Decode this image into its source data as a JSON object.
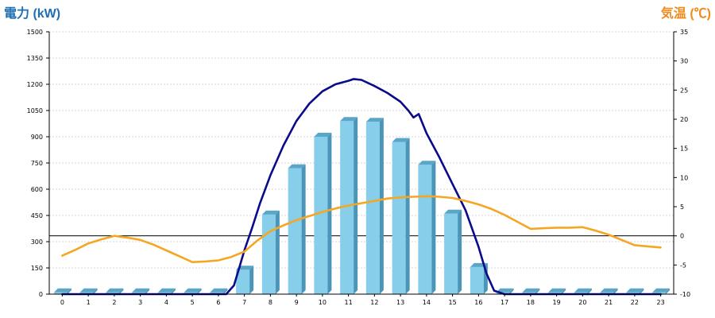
{
  "chart_data": {
    "type": "bar",
    "title": "",
    "ylabel_left": "電力 (kW)",
    "ylabel_right": "気温 (℃)",
    "xlabel": "",
    "categories": [
      "0",
      "1",
      "2",
      "3",
      "4",
      "5",
      "6",
      "7",
      "8",
      "9",
      "10",
      "11",
      "12",
      "13",
      "14",
      "15",
      "16",
      "17",
      "18",
      "19",
      "20",
      "21",
      "22",
      "23"
    ],
    "y_left": {
      "min": 0,
      "max": 1500,
      "ticks": [
        "0",
        "150",
        "300",
        "450",
        "600",
        "750",
        "900",
        "1050",
        "1200",
        "1350",
        "1500"
      ]
    },
    "y_right": {
      "min": -10,
      "max": 35,
      "ticks": [
        "-10",
        "-5",
        "0",
        "5",
        "10",
        "15",
        "20",
        "25",
        "30",
        "35"
      ]
    },
    "grid": true,
    "series": [
      {
        "kind": "bar",
        "axis": "left",
        "color": "#87ceeb",
        "values": [
          10,
          10,
          10,
          10,
          10,
          10,
          10,
          140,
          455,
          720,
          900,
          990,
          985,
          870,
          740,
          460,
          155,
          10,
          10,
          10,
          10,
          10,
          10,
          10
        ]
      },
      {
        "kind": "line",
        "axis": "left",
        "color": "#0a0a8a",
        "x": [
          0,
          0.5,
          1,
          1.5,
          2,
          2.5,
          3,
          3.5,
          4,
          4.5,
          5,
          5.5,
          6,
          6.3,
          6.6,
          6.8,
          7,
          7.3,
          7.6,
          8,
          8.5,
          9,
          9.5,
          10,
          10.5,
          11,
          11.2,
          11.5,
          12,
          12.5,
          13,
          13.3,
          13.5,
          13.7,
          14,
          14.5,
          15,
          15.5,
          16,
          16.3,
          16.6,
          17,
          17.5,
          18,
          19,
          20,
          21,
          22,
          23
        ],
        "values": [
          0,
          0,
          0,
          0,
          0,
          0,
          0,
          0,
          0,
          0,
          0,
          0,
          0,
          0,
          50,
          150,
          250,
          380,
          520,
          680,
          850,
          990,
          1090,
          1160,
          1200,
          1220,
          1230,
          1225,
          1190,
          1150,
          1100,
          1050,
          1010,
          1030,
          920,
          780,
          630,
          480,
          270,
          120,
          20,
          0,
          0,
          0,
          0,
          0,
          0,
          0,
          0
        ]
      },
      {
        "kind": "line",
        "axis": "right",
        "color": "#f5a623",
        "x": [
          0,
          0.5,
          1,
          1.5,
          2,
          2.5,
          3,
          3.5,
          4,
          4.5,
          5,
          5.5,
          6,
          6.5,
          7,
          7.5,
          8,
          8.5,
          9,
          9.5,
          10,
          10.5,
          11,
          11.5,
          12,
          12.5,
          13,
          13.5,
          14,
          14.5,
          15,
          15.5,
          16,
          16.5,
          17,
          17.5,
          18,
          18.5,
          19,
          19.5,
          20,
          20.5,
          21,
          21.5,
          22,
          22.5,
          23
        ],
        "values": [
          -3.4,
          -2.4,
          -1.3,
          -0.6,
          0,
          -0.3,
          -0.7,
          -1.5,
          -2.5,
          -3.5,
          -4.5,
          -4.4,
          -4.2,
          -3.6,
          -2.7,
          -0.8,
          0.8,
          1.8,
          2.7,
          3.4,
          4.1,
          4.7,
          5.2,
          5.6,
          6.0,
          6.4,
          6.6,
          6.7,
          6.8,
          6.7,
          6.5,
          6.0,
          5.4,
          4.6,
          3.6,
          2.4,
          1.2,
          1.3,
          1.4,
          1.4,
          1.5,
          0.9,
          0.2,
          -0.7,
          -1.6,
          -1.8,
          -2.0
        ]
      }
    ],
    "reference_line": {
      "axis": "right",
      "value": 0,
      "color": "#000000"
    },
    "colors": {
      "left_title": "#1f6fb3",
      "right_title": "#f08a1d",
      "bar": "#87ceeb",
      "bar_side": "#4a95b8",
      "bar_top": "#5aa6c8"
    }
  }
}
